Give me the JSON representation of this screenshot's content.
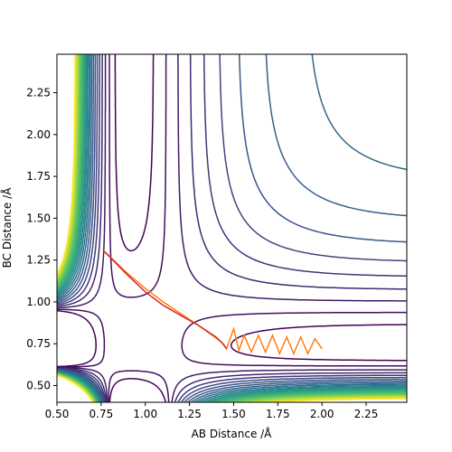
{
  "chart_data": {
    "type": "contour",
    "x_label": "AB Distance /Å",
    "y_label": "BC Distance /Å",
    "xlim": [
      0.5,
      2.48
    ],
    "ylim": [
      0.4,
      2.48
    ],
    "xticks": [
      {
        "value": 0.5,
        "label": "0.50"
      },
      {
        "value": 0.75,
        "label": "0.75"
      },
      {
        "value": 1.0,
        "label": "1.00"
      },
      {
        "value": 1.25,
        "label": "1.25"
      },
      {
        "value": 1.5,
        "label": "1.50"
      },
      {
        "value": 1.75,
        "label": "1.75"
      },
      {
        "value": 2.0,
        "label": "2.00"
      },
      {
        "value": 2.25,
        "label": "2.25"
      }
    ],
    "yticks": [
      {
        "value": 0.5,
        "label": "0.50"
      },
      {
        "value": 0.75,
        "label": "0.75"
      },
      {
        "value": 1.0,
        "label": "1.00"
      },
      {
        "value": 1.25,
        "label": "1.25"
      },
      {
        "value": 1.5,
        "label": "1.50"
      },
      {
        "value": 1.75,
        "label": "1.75"
      },
      {
        "value": 2.0,
        "label": "2.00"
      },
      {
        "value": 2.25,
        "label": "2.25"
      }
    ],
    "levels": [
      -0.9,
      -0.8,
      -0.7,
      -0.6,
      -0.5,
      -0.4,
      -0.3,
      -0.2,
      -0.1,
      0.0,
      0.1,
      0.2,
      0.3,
      0.4,
      0.5,
      0.6,
      0.7,
      0.8,
      0.9,
      1.0,
      1.1,
      1.2,
      1.3,
      1.4,
      1.5
    ],
    "colormap": [
      "#440154",
      "#3b528b",
      "#21918c",
      "#5ec962",
      "#fde725"
    ],
    "series": [
      {
        "color": "#ff7f0e",
        "x": [
          0.76,
          0.9,
          1.0,
          1.1,
          1.2,
          1.3,
          1.38,
          1.43,
          1.46,
          1.5,
          1.53,
          1.56,
          1.6,
          1.64,
          1.68,
          1.72,
          1.76,
          1.8,
          1.84,
          1.88,
          1.92,
          1.96,
          2.0
        ],
        "y": [
          1.31,
          1.17,
          1.08,
          1.0,
          0.93,
          0.86,
          0.8,
          0.76,
          0.72,
          0.84,
          0.71,
          0.8,
          0.7,
          0.8,
          0.7,
          0.8,
          0.69,
          0.79,
          0.69,
          0.79,
          0.69,
          0.78,
          0.72
        ]
      },
      {
        "color": "#d62728",
        "x": [
          0.76,
          0.9,
          1.0,
          1.1,
          1.2,
          1.3,
          1.4,
          1.44,
          1.46
        ],
        "y": [
          1.31,
          1.16,
          1.06,
          0.98,
          0.92,
          0.86,
          0.79,
          0.75,
          0.72
        ]
      }
    ]
  }
}
